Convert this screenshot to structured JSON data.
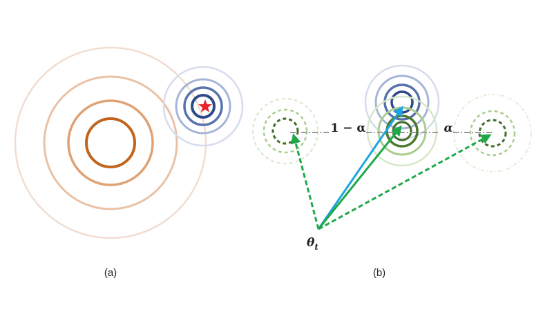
{
  "panels": [
    {
      "caption": "(a)"
    },
    {
      "caption": "(b)"
    }
  ],
  "labels": {
    "theta_symbol": "θ",
    "theta_subscript": "t",
    "one_minus_alpha": "1 − α",
    "alpha": "α"
  },
  "colors": {
    "orange": "#c0641e",
    "blue": "#2b4a88",
    "green_dark": "#4a7a2c",
    "green_light": "#b5d49e",
    "arrow_green": "#1fa84a",
    "arrow_blue": "#1da4e0",
    "star": "#e8232a",
    "gray_dashdot": "#9a9a9a"
  }
}
